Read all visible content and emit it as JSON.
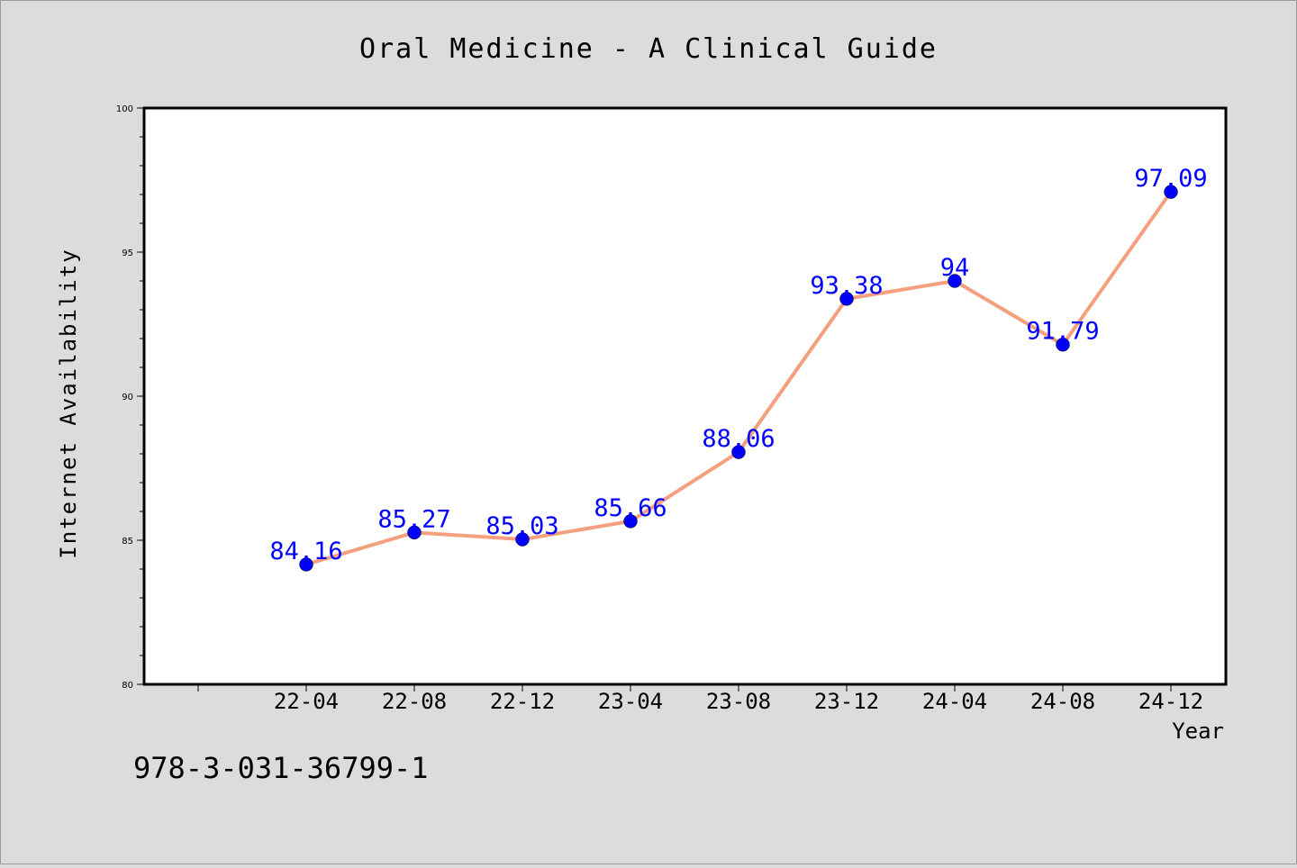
{
  "chart_data": {
    "type": "line",
    "title": "Oral Medicine - A Clinical Guide",
    "xlabel": "Year",
    "ylabel": "Internet Availability",
    "categories": [
      "22-04",
      "22-08",
      "22-12",
      "23-04",
      "23-08",
      "23-12",
      "24-04",
      "24-08",
      "24-12"
    ],
    "series": [
      {
        "values": [
          84.16,
          85.27,
          85.03,
          85.66,
          88.06,
          93.38,
          94,
          91.79,
          97.09
        ],
        "labels": [
          "84.16",
          "85.27",
          "85.03",
          "85.66",
          "88.06",
          "93.38",
          "94",
          "91.79",
          "97.09"
        ],
        "line_color": "#f4a07e",
        "marker_color": "#0000ff"
      }
    ],
    "ylim": [
      80,
      100
    ],
    "yticks": [
      "80",
      "85",
      "90",
      "95",
      "100"
    ],
    "grid": false,
    "label_color": "#0000ff"
  },
  "footer_text": "978-3-031-36799-1"
}
